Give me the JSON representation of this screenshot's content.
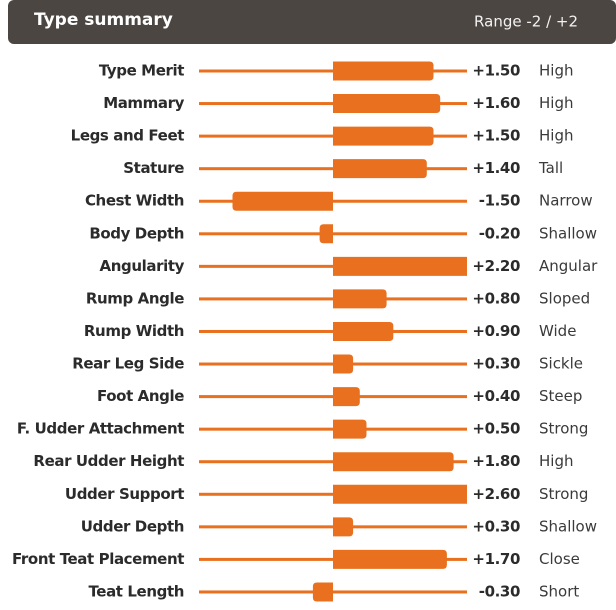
{
  "chart_data": {
    "type": "diverging-bar",
    "title": "Type summary",
    "range_label": "Range -2 / +2",
    "categories": [
      "Type Merit",
      "Mammary",
      "Legs and Feet",
      "Stature",
      "Chest Width",
      "Body Depth",
      "Angularity",
      "Rump Angle",
      "Rump Width",
      "Rear Leg Side",
      "Foot Angle",
      "F. Udder Attachment",
      "Rear Udder Height",
      "Udder Support",
      "Udder Depth",
      "Front Teat Placement",
      "Teat Length"
    ],
    "values": [
      1.5,
      1.6,
      1.5,
      1.4,
      -1.5,
      -0.2,
      2.2,
      0.8,
      0.9,
      0.3,
      0.4,
      0.5,
      1.8,
      2.6,
      0.3,
      1.7,
      -0.3
    ],
    "value_labels": [
      "+1.50",
      "+1.60",
      "+1.50",
      "+1.40",
      "-1.50",
      "-0.20",
      "+2.20",
      "+0.80",
      "+0.90",
      "+0.30",
      "+0.40",
      "+0.50",
      "+1.80",
      "+2.60",
      "+0.30",
      "+1.70",
      "-0.30"
    ],
    "descriptors": [
      "High",
      "High",
      "High",
      "Tall",
      "Narrow",
      "Shallow",
      "Angular",
      "Sloped",
      "Wide",
      "Sickle",
      "Steep",
      "Strong",
      "High",
      "Strong",
      "Shallow",
      "Close",
      "Short"
    ],
    "xlim": [
      -2,
      2
    ],
    "color": "#e8701e"
  }
}
